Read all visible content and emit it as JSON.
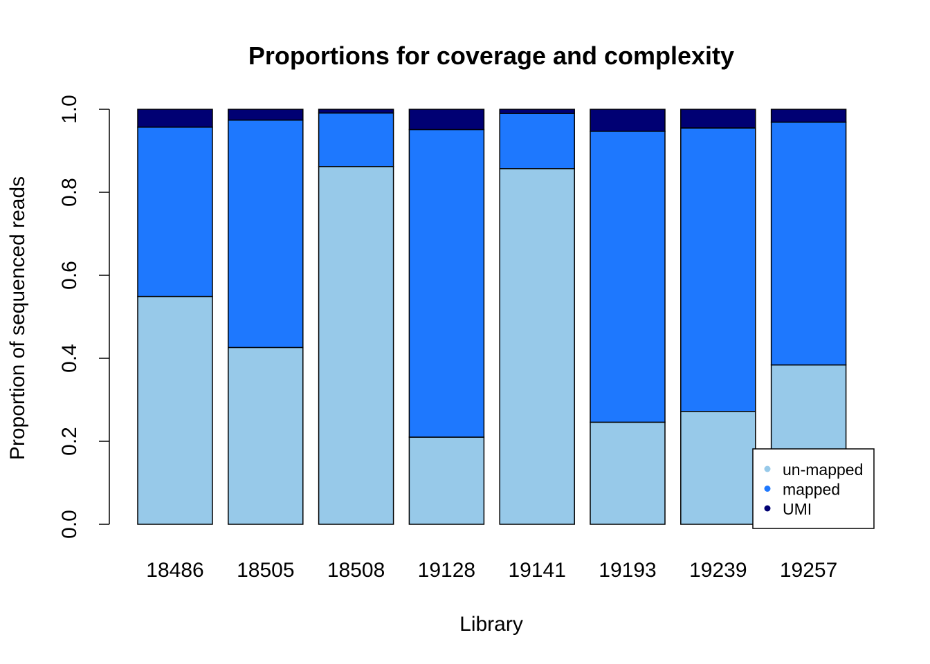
{
  "chart_data": {
    "type": "bar",
    "stacked": true,
    "title": "Proportions for coverage and complexity",
    "xlabel": "Library",
    "ylabel": "Proportion of sequenced reads",
    "ylim": [
      0,
      1
    ],
    "yticks": [
      "0.0",
      "0.2",
      "0.4",
      "0.6",
      "0.8",
      "1.0"
    ],
    "grid": false,
    "legend_position": "bottom-right",
    "categories": [
      "18486",
      "18505",
      "18508",
      "19128",
      "19141",
      "19193",
      "19239",
      "19257"
    ],
    "series": [
      {
        "name": "un-mapped",
        "color": "#97C9E9",
        "values": [
          0.549,
          0.426,
          0.862,
          0.21,
          0.857,
          0.246,
          0.272,
          0.384
        ]
      },
      {
        "name": "mapped",
        "color": "#1E78FE",
        "values": [
          0.408,
          0.548,
          0.129,
          0.741,
          0.133,
          0.701,
          0.683,
          0.585
        ]
      },
      {
        "name": "UMI",
        "color": "#000073",
        "values": [
          0.043,
          0.026,
          0.009,
          0.049,
          0.01,
          0.053,
          0.045,
          0.031
        ]
      }
    ]
  }
}
